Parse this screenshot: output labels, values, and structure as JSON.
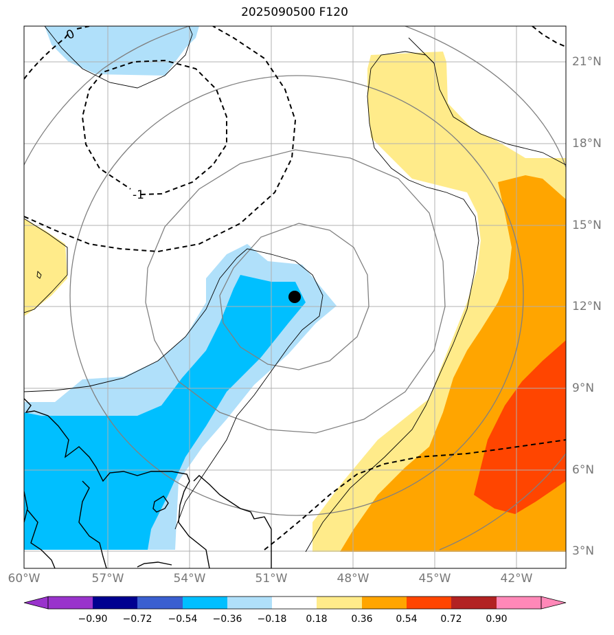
{
  "title": "2025090500 F120",
  "colors": {
    "neg_very_dark": "#9933cc",
    "neg_090": "#000090",
    "neg_072": "#3a5fd0",
    "neg_054": "#00bfff",
    "neg_036": "#b0e0fa",
    "neutral": "#ffffff",
    "pos_018": "#ffeb8a",
    "pos_036": "#ffa500",
    "pos_054": "#ff4500",
    "pos_072": "#b22222",
    "pos_090": "#ff88b8",
    "gray_contour": "#808080",
    "grid": "#b0b0b0"
  },
  "map": {
    "lon_ticks": [
      "60°W",
      "57°W",
      "54°W",
      "51°W",
      "48°W",
      "45°W",
      "42°W"
    ],
    "lat_ticks": [
      "21°N",
      "18°N",
      "15°N",
      "12°N",
      "9°N",
      "6°N",
      "3°N"
    ],
    "contour_labels": [
      "0",
      "-1"
    ],
    "storm_marker": {
      "lon": -50.1,
      "lat": 12.4
    }
  },
  "colorbar": {
    "ticks": [
      "−0.90",
      "−0.72",
      "−0.54",
      "−0.36",
      "−0.18",
      "0.18",
      "0.36",
      "0.54",
      "0.72",
      "0.90"
    ]
  }
}
